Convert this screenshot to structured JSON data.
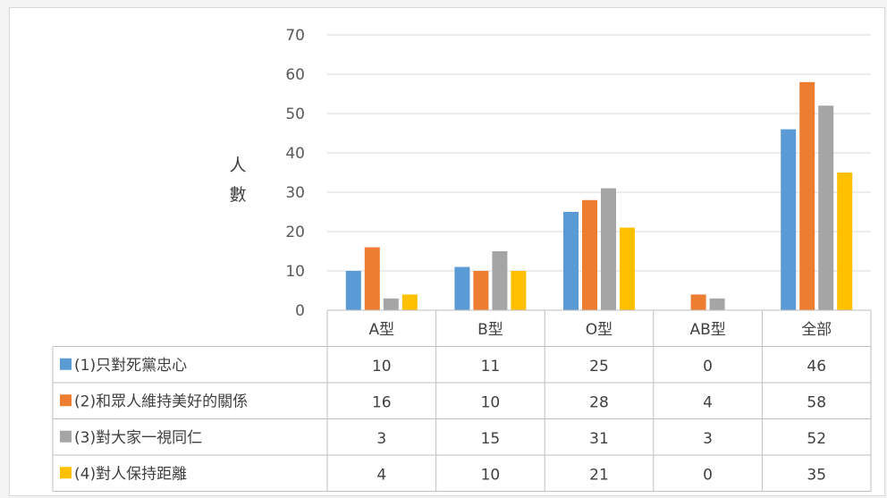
{
  "chart_data": {
    "type": "bar",
    "ylabel_chars": [
      "人",
      "數"
    ],
    "ylim": [
      0,
      70
    ],
    "yticks": [
      0,
      10,
      20,
      30,
      40,
      50,
      60,
      70
    ],
    "grid": true,
    "categories": [
      "A型",
      "B型",
      "O型",
      "AB型",
      "全部"
    ],
    "series": [
      {
        "name": "(1)只對死黨忠心",
        "color": "#5b9bd5",
        "values": [
          10,
          11,
          25,
          0,
          46
        ]
      },
      {
        "name": "(2)和眾人維持美好的關係",
        "color": "#ed7d31",
        "values": [
          16,
          10,
          28,
          4,
          58
        ]
      },
      {
        "name": "(3)對大家一視同仁",
        "color": "#a5a5a5",
        "values": [
          3,
          15,
          31,
          3,
          52
        ]
      },
      {
        "name": "(4)對人保持距離",
        "color": "#ffc000",
        "values": [
          4,
          10,
          21,
          0,
          35
        ]
      }
    ],
    "legend": "data-table"
  }
}
